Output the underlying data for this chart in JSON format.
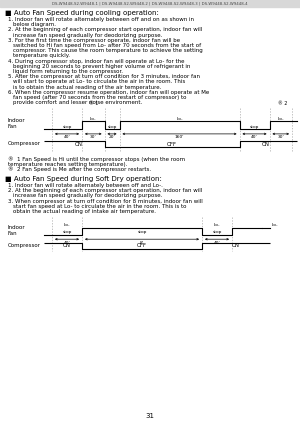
{
  "header_text": "DS-W9448-S2-W9448-1 | DS-W9448-S2-W9448-2 | DS-W9448-S2-W9448-3 | DS-W9448-S2-W9448-4",
  "cooling_title": "■ Auto Fan Speed during cooling operation:",
  "cooling_bullets": [
    "1. Indoor fan will rotate alternately between off and on as shown in below diagram.",
    "2. At the beginning of each compressor start operation, indoor fan will increase fan speed gradually for deodorizing purpose.",
    "3. For the first time the compressor operate, indoor fan will be switched to Hi fan speed from Lo- after 70 seconds from the start of compressor. This cause the room temperature to achieve the setting temperature quickly.",
    "4. During compressor stop, indoor fan will operate at Lo- for the beginning 20 seconds to prevent higher volume of refrigerant in liquid form returning to the compressor.",
    "5. After the compressor at turn off condition for 3 minutes, indoor fan will start to operate at Lo- to circulate the air in the room. This is to obtain the actual reading of the air temperature.",
    "6. When the compressor resume operation, indoor fan will operate at Me fan speed (after 70 seconds from the restart of compressor) to provide comfort and lesser noise environment."
  ],
  "cooling_notes": [
    "®  1 Fan Speed is Hi until the compressor stops (when the room temperature reaches setting temperature).",
    "®  2 Fan Speed is Me after the compressor restarts."
  ],
  "dry_title": "■ Auto Fan Speed during Soft Dry operation:",
  "dry_bullets": [
    "1. Indoor fan will rotate alternately between off and Lo-.",
    "2. At the beginning of each compressor start operation, indoor fan will increase fan speed gradually for deodorizing purpose.",
    "3. When compressor at turn off condition for 8 minutes, indoor fan will start fan speed at Lo- to circulate the air in the room. This is to obtain the actual reading of intake air temperature."
  ],
  "page_num": "31",
  "bg_color": "#ffffff"
}
